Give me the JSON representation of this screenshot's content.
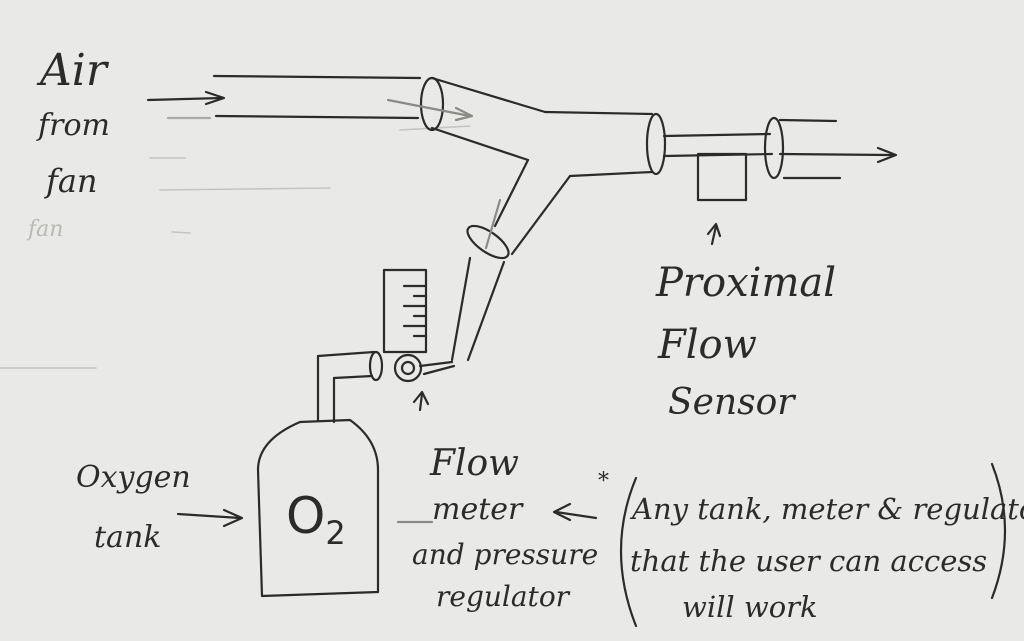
{
  "labels": {
    "air_from_fan": [
      "Air",
      "from",
      "fan"
    ],
    "faint_text": "fan",
    "oxygen_tank": [
      "Oxygen",
      "tank"
    ],
    "o2": "O",
    "o2_sub": "2",
    "flow_meter": [
      "Flow",
      "meter",
      "and pressure",
      "regulator"
    ],
    "proximal_flow_sensor": [
      "Proximal",
      "Flow",
      "Sensor"
    ],
    "note_marker": "*",
    "note": [
      "Any tank, meter & regulator",
      "that the user can access",
      "will work"
    ]
  },
  "colors": {
    "paper": "#e9e9e7",
    "ink": "#2b2b2b",
    "faint": "#b9b9b6"
  }
}
